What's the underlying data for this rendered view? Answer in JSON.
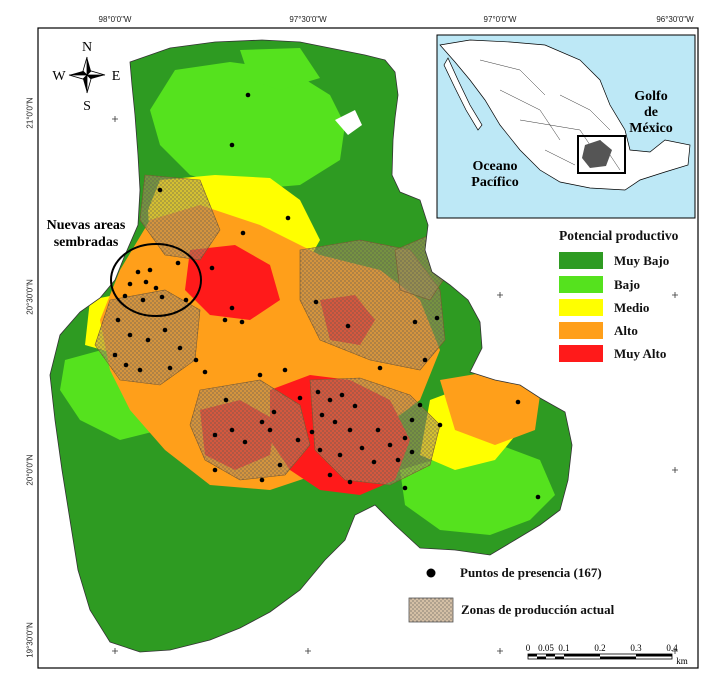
{
  "axes": {
    "lon_ticks": [
      "98°0'0\"W",
      "97°30'0\"W",
      "97°0'0\"W",
      "96°30'0\"W"
    ],
    "lat_ticks": [
      "21°0'0\"N",
      "20°30'0\"N",
      "20°0'0\"N",
      "19°30'0\"N"
    ]
  },
  "compass": {
    "n": "N",
    "s": "S",
    "e": "E",
    "w": "W"
  },
  "inset": {
    "gulf_label_1": "Golfo",
    "gulf_label_2": "de",
    "gulf_label_3": "México",
    "pacific_label_1": "Oceano",
    "pacific_label_2": "Pacífico",
    "water_color": "#bde8f6"
  },
  "annotation": {
    "line1": "Nuevas areas",
    "line2": "sembradas"
  },
  "legend": {
    "title": "Potencial productivo",
    "classes": [
      {
        "label": "Muy Bajo",
        "color": "#2e9b22"
      },
      {
        "label": "Bajo",
        "color": "#55e21e"
      },
      {
        "label": "Medio",
        "color": "#ffff00"
      },
      {
        "label": "Alto",
        "color": "#ff9f1a"
      },
      {
        "label": "Muy Alto",
        "color": "#ff1a1a"
      }
    ],
    "presence_label": "Puntos de presencia (167)",
    "zones_label": "Zonas de producción actual"
  },
  "scalebar": {
    "labels": [
      "0",
      "0.05",
      "0.1",
      "0.2",
      "0.3",
      "0.4"
    ],
    "unit": "km"
  }
}
